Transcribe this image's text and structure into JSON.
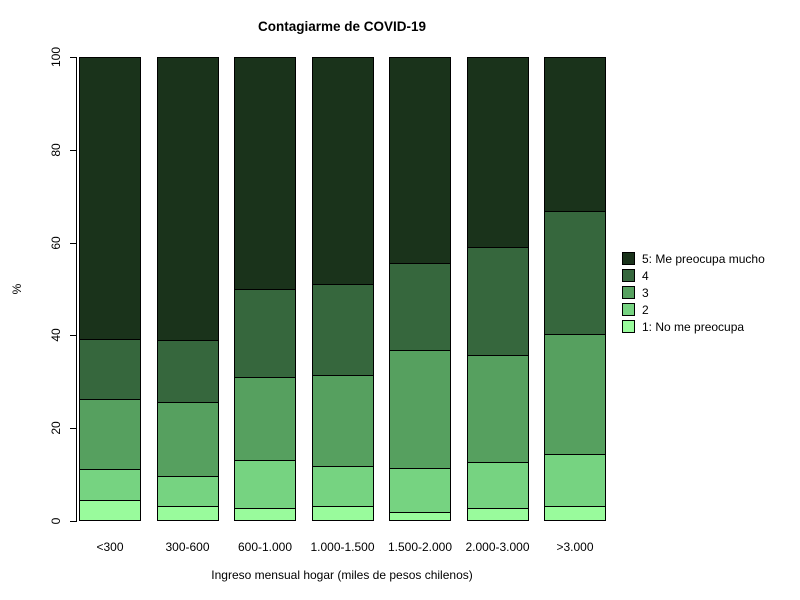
{
  "chart_data": {
    "type": "bar",
    "subtype": "stacked-percentage",
    "title": "Contagiarme de COVID-19",
    "xlabel": "Ingreso mensual hogar (miles de pesos chilenos)",
    "ylabel": "%",
    "ylim": [
      0,
      100
    ],
    "yticks": [
      0,
      20,
      40,
      60,
      80,
      100
    ],
    "grid": false,
    "categories": [
      "<300",
      "300-600",
      "600-1.000",
      "1.000-1.500",
      "1.500-2.000",
      "2.000-3.000",
      ">3.000"
    ],
    "series": [
      {
        "name": "1: No me preocupa",
        "color": "#99fb9c",
        "values": [
          4.3,
          3.0,
          2.6,
          3.0,
          1.8,
          2.7,
          3.0
        ]
      },
      {
        "name": "2",
        "color": "#76d381",
        "values": [
          6.8,
          6.5,
          10.4,
          8.8,
          9.4,
          9.9,
          11.2
        ]
      },
      {
        "name": "3",
        "color": "#56a05f",
        "values": [
          15.0,
          16.0,
          18.0,
          19.7,
          25.7,
          23.2,
          26.1
        ]
      },
      {
        "name": "4",
        "color": "#36673d",
        "values": [
          13.0,
          13.5,
          19.0,
          19.5,
          18.8,
          23.2,
          26.6
        ]
      },
      {
        "name": "5: Me preocupa mucho",
        "color": "#1a331b",
        "values": [
          60.9,
          61.0,
          50.0,
          49.0,
          44.3,
          41.0,
          33.1
        ]
      }
    ],
    "legend": {
      "position": "right",
      "entries_top_to_bottom": [
        "5: Me preocupa mucho",
        "4",
        "3",
        "2",
        "1: No me preocupa"
      ]
    }
  }
}
